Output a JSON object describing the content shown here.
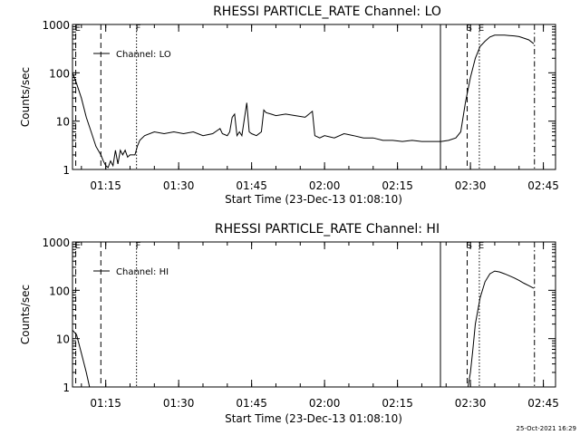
{
  "timestamp": "25-Oct-2021 16:29",
  "chart_data": [
    {
      "type": "line",
      "title": "RHESSI PARTICLE_RATE Channel: LO",
      "xlabel": "Start Time (23-Dec-13 01:08:10)",
      "ylabel": "Counts/sec",
      "yscale": "log",
      "ylim": [
        1,
        1000
      ],
      "xlim": [
        "01:08:10",
        "02:47:30"
      ],
      "x_ticks": [
        "01:15",
        "01:30",
        "01:45",
        "02:00",
        "02:15",
        "02:30",
        "02:45"
      ],
      "y_ticks": [
        "1",
        "10",
        "100",
        "1000"
      ],
      "legend": "Channel: LO",
      "markers": [
        {
          "label": "E",
          "time": "01:08:50",
          "style": "dashed"
        },
        {
          "label": "",
          "time": "01:14:00",
          "style": "dashed"
        },
        {
          "label": "F",
          "time": "01:21:20",
          "style": "dotted"
        },
        {
          "label": "",
          "time": "02:23:50",
          "style": "solid"
        },
        {
          "label": "S",
          "time": "02:29:20",
          "style": "dashed"
        },
        {
          "label": "E",
          "time": "02:31:50",
          "style": "dotted"
        },
        {
          "label": "",
          "time": "02:43:10",
          "style": "dashdot"
        }
      ],
      "series": [
        {
          "name": "Channel: LO",
          "x": [
            "01:08:10",
            "01:09:00",
            "01:10:00",
            "01:11:00",
            "01:12:00",
            "01:13:00",
            "01:14:00",
            "01:14:30",
            "01:15:00",
            "01:15:30",
            "01:16:00",
            "01:16:30",
            "01:17:00",
            "01:17:30",
            "01:18:00",
            "01:18:30",
            "01:19:00",
            "01:19:30",
            "01:20:00",
            "01:21:00",
            "01:21:30",
            "01:22:00",
            "01:23:00",
            "01:25:00",
            "01:27:00",
            "01:29:00",
            "01:31:00",
            "01:33:00",
            "01:35:00",
            "01:37:00",
            "01:38:30",
            "01:39:00",
            "01:40:00",
            "01:40:30",
            "01:41:00",
            "01:41:30",
            "01:42:00",
            "01:42:30",
            "01:43:00",
            "01:44:00",
            "01:44:30",
            "01:45:00",
            "01:46:00",
            "01:47:00",
            "01:47:30",
            "01:48:00",
            "01:49:00",
            "01:50:00",
            "01:52:00",
            "01:54:00",
            "01:56:00",
            "01:57:30",
            "01:58:00",
            "01:59:00",
            "02:00:00",
            "02:02:00",
            "02:04:00",
            "02:06:00",
            "02:08:00",
            "02:10:00",
            "02:12:00",
            "02:14:00",
            "02:16:00",
            "02:18:00",
            "02:20:00",
            "02:22:00",
            "02:24:00",
            "02:25:30",
            "02:27:00",
            "02:28:00",
            "02:29:00",
            "02:30:00",
            "02:31:00",
            "02:32:00",
            "02:33:00",
            "02:34:00",
            "02:35:00",
            "02:36:00",
            "02:37:00",
            "02:38:00",
            "02:39:00",
            "02:40:00",
            "02:41:00",
            "02:42:00",
            "02:43:00"
          ],
          "y": [
            100,
            60,
            30,
            12,
            6,
            3,
            2,
            1.5,
            1.2,
            1.1,
            1.5,
            1.2,
            2.5,
            1.3,
            2.5,
            2,
            2.5,
            1.8,
            2,
            2,
            3,
            4,
            5,
            6,
            5.5,
            6,
            5.5,
            6,
            5,
            5.5,
            7,
            5.5,
            5,
            6,
            12,
            14,
            5,
            6,
            5,
            24,
            6,
            5.5,
            5,
            6,
            17,
            15,
            14,
            13,
            14,
            13,
            12,
            16,
            5,
            4.5,
            5,
            4.5,
            5.5,
            5,
            4.5,
            4.5,
            4,
            4,
            3.8,
            4,
            3.8,
            3.8,
            3.8,
            4,
            4.5,
            6,
            25,
            80,
            200,
            350,
            450,
            550,
            600,
            600,
            600,
            590,
            580,
            560,
            520,
            480,
            400
          ]
        }
      ]
    },
    {
      "type": "line",
      "title": "RHESSI PARTICLE_RATE Channel: HI",
      "xlabel": "Start Time (23-Dec-13 01:08:10)",
      "ylabel": "Counts/sec",
      "yscale": "log",
      "ylim": [
        1,
        1000
      ],
      "xlim": [
        "01:08:10",
        "02:47:30"
      ],
      "x_ticks": [
        "01:15",
        "01:30",
        "01:45",
        "02:00",
        "02:15",
        "02:30",
        "02:45"
      ],
      "y_ticks": [
        "1",
        "10",
        "100",
        "1000"
      ],
      "legend": "Channel: HI",
      "markers": [
        {
          "label": "E",
          "time": "01:08:50",
          "style": "dashed"
        },
        {
          "label": "",
          "time": "01:14:00",
          "style": "dashed"
        },
        {
          "label": "F",
          "time": "01:21:20",
          "style": "dotted"
        },
        {
          "label": "",
          "time": "02:23:50",
          "style": "solid"
        },
        {
          "label": "S",
          "time": "02:29:20",
          "style": "dashed"
        },
        {
          "label": "E",
          "time": "02:31:50",
          "style": "dotted"
        },
        {
          "label": "",
          "time": "02:43:10",
          "style": "dashdot"
        }
      ],
      "series": [
        {
          "name": "Channel: HI",
          "x": [
            "01:08:10",
            "01:09:00",
            "01:10:00",
            "01:11:00",
            "01:11:40",
            "02:29:30",
            "02:30:00",
            "02:30:30",
            "02:31:00",
            "02:32:00",
            "02:33:00",
            "02:34:00",
            "02:35:00",
            "02:36:00",
            "02:37:00",
            "02:38:00",
            "02:39:00",
            "02:40:00",
            "02:41:00",
            "02:42:00",
            "02:43:00"
          ],
          "y": [
            15,
            12,
            5,
            2,
            1,
            1,
            2,
            6,
            20,
            70,
            150,
            220,
            250,
            240,
            220,
            200,
            180,
            160,
            140,
            125,
            110
          ]
        }
      ]
    }
  ]
}
